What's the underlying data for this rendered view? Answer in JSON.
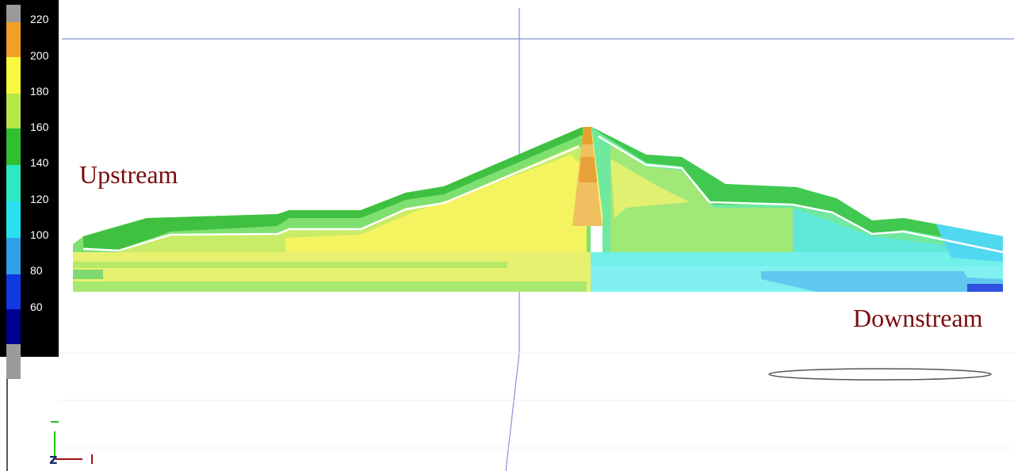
{
  "legend": {
    "labels": [
      "220",
      "200",
      "180",
      "160",
      "140",
      "120",
      "100",
      "80",
      "60"
    ],
    "swatch_colors": [
      "#9a9a9a",
      "#f0a028",
      "#f8f840",
      "#b8e848",
      "#30c030",
      "#30e8c0",
      "#28e0f0",
      "#30a0e8",
      "#1038e0",
      "#000090",
      "#9a9a9a"
    ]
  },
  "annotations": {
    "upstream": "Upstream",
    "downstream": "Downstream"
  },
  "axes": {
    "z_label": "z"
  },
  "colors": {
    "annotation": "#7a0c0c",
    "gridline": "#8890d8"
  }
}
